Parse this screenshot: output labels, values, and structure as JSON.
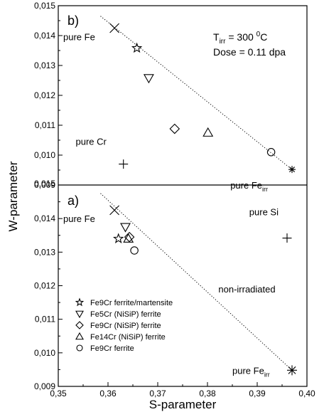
{
  "chart_data": {
    "type": "scatter",
    "xlabel": "S-parameter",
    "ylabel": "W-parameter",
    "xlim": [
      0.35,
      0.4
    ],
    "x_ticks": [
      "0,35",
      "0,36",
      "0,37",
      "0,38",
      "0,39",
      "0,40"
    ],
    "grid": false,
    "legend_position": "bottom-left",
    "panels": [
      {
        "label": "b)",
        "ylim": [
          0.009,
          0.015
        ],
        "y_ticks": [
          "0,009",
          "0,010",
          "0,011",
          "0,012",
          "0,013",
          "0,014",
          "0,015"
        ],
        "info_line1_base": "T",
        "info_line1_sub": "irr",
        "info_line1_rest": " = 300 ",
        "info_line1_sup": "0",
        "info_line1_unit": "C",
        "info_line2": "Dose = 0.11 dpa",
        "points": [
          {
            "series": "pure Fe",
            "marker": "x",
            "x": 0.3613,
            "y": 0.01425
          },
          {
            "series": "Fe9Cr ferrite/martensite",
            "marker": "star",
            "x": 0.3658,
            "y": 0.01358
          },
          {
            "series": "Fe5Cr (NiSiP) ferrite",
            "marker": "triangle-down",
            "x": 0.3682,
            "y": 0.01258
          },
          {
            "series": "Fe9Cr (NiSiP) ferrite",
            "marker": "diamond",
            "x": 0.3734,
            "y": 0.01088
          },
          {
            "series": "Fe14Cr (NiSiP) ferrite",
            "marker": "triangle-up",
            "x": 0.3801,
            "y": 0.01075
          },
          {
            "series": "pure Cr",
            "marker": "plus",
            "x": 0.3631,
            "y": 0.0097
          },
          {
            "series": "Fe9Cr ferrite",
            "marker": "circle",
            "x": 0.3928,
            "y": 0.0101
          },
          {
            "series": "pure Fe irr",
            "marker": "asterisk",
            "x": 0.397,
            "y": 0.00952
          }
        ],
        "trend_line": [
          [
            0.3585,
            0.01465
          ],
          [
            0.3975,
            0.00945
          ]
        ],
        "annotations": [
          {
            "text": "pure Fe",
            "x": 0.351,
            "y": 0.01385
          },
          {
            "text": "pure Cr",
            "x": 0.3535,
            "y": 0.01035
          },
          {
            "text": "pure Fe",
            "sub": "irr",
            "x": 0.3846,
            "y": 0.00888
          }
        ]
      },
      {
        "label": "a)",
        "ylim": [
          0.009,
          0.015
        ],
        "y_ticks": [
          "0,009",
          "0,010",
          "0,011",
          "0,012",
          "0,013",
          "0,014",
          "0,015"
        ],
        "points": [
          {
            "series": "pure Fe",
            "marker": "x",
            "x": 0.3613,
            "y": 0.01425
          },
          {
            "series": "Fe9Cr ferrite/martensite",
            "marker": "star",
            "x": 0.3621,
            "y": 0.0134
          },
          {
            "series": "Fe5Cr (NiSiP) ferrite",
            "marker": "triangle-down",
            "x": 0.3635,
            "y": 0.01375
          },
          {
            "series": "Fe9Cr (NiSiP) ferrite",
            "marker": "diamond",
            "x": 0.3643,
            "y": 0.01345
          },
          {
            "series": "Fe14Cr (NiSiP) ferrite",
            "marker": "triangle-up",
            "x": 0.3641,
            "y": 0.0134
          },
          {
            "series": "Fe9Cr ferrite",
            "marker": "circle",
            "x": 0.3653,
            "y": 0.01305
          },
          {
            "series": "pure Si",
            "marker": "plus",
            "x": 0.396,
            "y": 0.01342
          },
          {
            "series": "pure Fe irr",
            "marker": "asterisk",
            "x": 0.397,
            "y": 0.00948
          }
        ],
        "trend_line": [
          [
            0.3585,
            0.01475
          ],
          [
            0.397,
            0.00948
          ]
        ],
        "annotations": [
          {
            "text": "pure Fe",
            "x": 0.351,
            "y": 0.0139
          },
          {
            "text": "pure Si",
            "x": 0.3884,
            "y": 0.0141
          },
          {
            "text": "non-irradiated",
            "x": 0.3822,
            "y": 0.0118
          },
          {
            "text": "pure Fe",
            "sub": "irr",
            "x": 0.385,
            "y": 0.00937
          }
        ]
      }
    ],
    "legend": [
      {
        "marker": "star",
        "label": "Fe9Cr ferrite/martensite"
      },
      {
        "marker": "triangle-down",
        "label": "Fe5Cr (NiSiP) ferrite"
      },
      {
        "marker": "diamond",
        "label": "Fe9Cr (NiSiP) ferrite"
      },
      {
        "marker": "triangle-up",
        "label": "Fe14Cr (NiSiP) ferrite"
      },
      {
        "marker": "circle",
        "label": "Fe9Cr ferrite"
      }
    ]
  }
}
